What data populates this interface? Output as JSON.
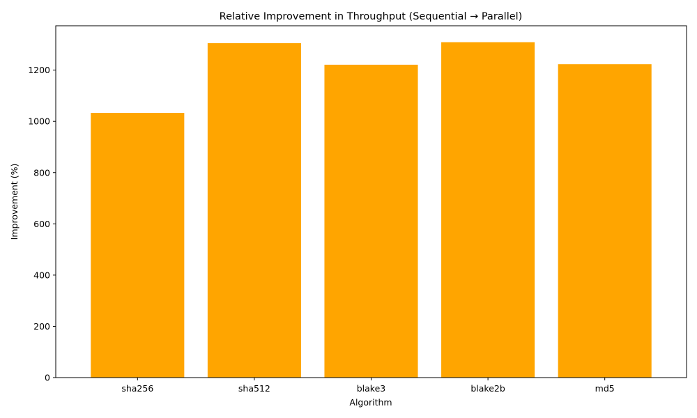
{
  "chart_data": {
    "type": "bar",
    "title": "Relative Improvement in Throughput (Sequential → Parallel)",
    "xlabel": "Algorithm",
    "ylabel": "Improvement (%)",
    "categories": [
      "sha256",
      "sha512",
      "blake3",
      "blake2b",
      "md5"
    ],
    "values": [
      1033,
      1305,
      1221,
      1309,
      1223
    ],
    "ylim": [
      0,
      1373
    ],
    "yticks": [
      0,
      200,
      400,
      600,
      800,
      1000,
      1200
    ],
    "grid": false,
    "legend": "none",
    "bar_color": "#FFA500"
  }
}
